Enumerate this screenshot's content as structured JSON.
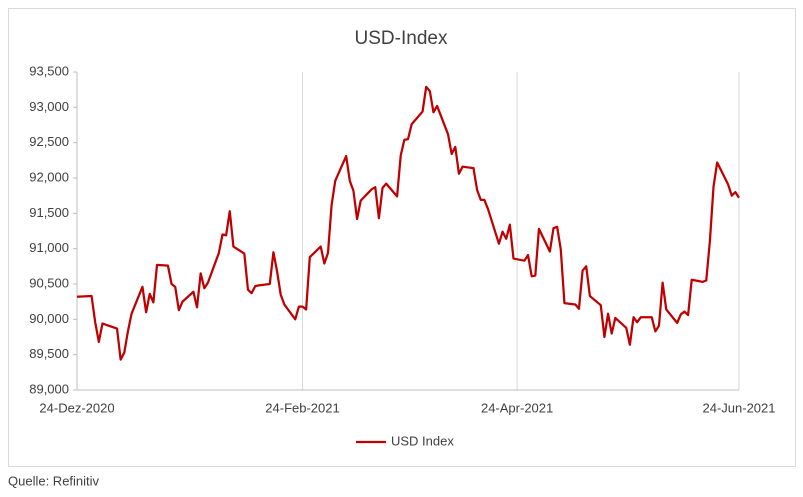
{
  "chart_data": {
    "type": "line",
    "title": "USD-Index",
    "source": "Quelle: Refinitiv",
    "x": [
      "2020-12-24",
      "2020-12-28",
      "2020-12-29",
      "2020-12-30",
      "2020-12-31",
      "2021-01-04",
      "2021-01-05",
      "2021-01-06",
      "2021-01-07",
      "2021-01-08",
      "2021-01-11",
      "2021-01-12",
      "2021-01-13",
      "2021-01-14",
      "2021-01-15",
      "2021-01-18",
      "2021-01-19",
      "2021-01-20",
      "2021-01-21",
      "2021-01-22",
      "2021-01-25",
      "2021-01-26",
      "2021-01-27",
      "2021-01-28",
      "2021-01-29",
      "2021-02-01",
      "2021-02-02",
      "2021-02-03",
      "2021-02-04",
      "2021-02-05",
      "2021-02-08",
      "2021-02-09",
      "2021-02-10",
      "2021-02-11",
      "2021-02-12",
      "2021-02-15",
      "2021-02-16",
      "2021-02-17",
      "2021-02-18",
      "2021-02-19",
      "2021-02-22",
      "2021-02-23",
      "2021-02-24",
      "2021-02-25",
      "2021-02-26",
      "2021-03-01",
      "2021-03-02",
      "2021-03-03",
      "2021-03-04",
      "2021-03-05",
      "2021-03-08",
      "2021-03-09",
      "2021-03-10",
      "2021-03-11",
      "2021-03-12",
      "2021-03-15",
      "2021-03-16",
      "2021-03-17",
      "2021-03-18",
      "2021-03-19",
      "2021-03-22",
      "2021-03-23",
      "2021-03-24",
      "2021-03-25",
      "2021-03-26",
      "2021-03-29",
      "2021-03-30",
      "2021-03-31",
      "2021-04-01",
      "2021-04-02",
      "2021-04-05",
      "2021-04-06",
      "2021-04-07",
      "2021-04-08",
      "2021-04-09",
      "2021-04-12",
      "2021-04-13",
      "2021-04-14",
      "2021-04-15",
      "2021-04-16",
      "2021-04-19",
      "2021-04-20",
      "2021-04-21",
      "2021-04-22",
      "2021-04-23",
      "2021-04-26",
      "2021-04-27",
      "2021-04-28",
      "2021-04-29",
      "2021-04-30",
      "2021-05-03",
      "2021-05-04",
      "2021-05-05",
      "2021-05-06",
      "2021-05-07",
      "2021-05-10",
      "2021-05-11",
      "2021-05-12",
      "2021-05-13",
      "2021-05-14",
      "2021-05-17",
      "2021-05-18",
      "2021-05-19",
      "2021-05-20",
      "2021-05-21",
      "2021-05-24",
      "2021-05-25",
      "2021-05-26",
      "2021-05-27",
      "2021-05-28",
      "2021-05-31",
      "2021-06-01",
      "2021-06-02",
      "2021-06-03",
      "2021-06-04",
      "2021-06-07",
      "2021-06-08",
      "2021-06-09",
      "2021-06-10",
      "2021-06-11",
      "2021-06-14",
      "2021-06-15",
      "2021-06-16",
      "2021-06-17",
      "2021-06-18",
      "2021-06-21",
      "2021-06-22",
      "2021-06-23",
      "2021-06-24"
    ],
    "series": [
      {
        "name": "USD Index",
        "color": "#c00000",
        "values": [
          90320,
          90330,
          89960,
          89680,
          89940,
          89870,
          89430,
          89530,
          89830,
          90080,
          90460,
          90100,
          90360,
          90240,
          90770,
          90760,
          90500,
          90460,
          90130,
          90250,
          90390,
          90170,
          90650,
          90440,
          90520,
          90940,
          91200,
          91190,
          91530,
          91030,
          90930,
          90420,
          90370,
          90470,
          90480,
          90500,
          90950,
          90680,
          90350,
          90210,
          90000,
          90180,
          90180,
          90140,
          90880,
          91030,
          90790,
          90940,
          91620,
          91960,
          92310,
          91960,
          91820,
          91420,
          91680,
          91840,
          91870,
          91430,
          91860,
          91920,
          91740,
          92320,
          92540,
          92550,
          92760,
          92940,
          93290,
          93230,
          92930,
          93020,
          92620,
          92340,
          92440,
          92060,
          92160,
          92140,
          91830,
          91690,
          91690,
          91560,
          91070,
          91240,
          91140,
          91340,
          90860,
          90830,
          90910,
          90610,
          90620,
          91280,
          90960,
          91290,
          91310,
          90990,
          90230,
          90210,
          90150,
          90690,
          90750,
          90330,
          90200,
          89750,
          90080,
          89800,
          90020,
          89880,
          89640,
          90030,
          89960,
          90030,
          90030,
          89830,
          89910,
          90520,
          90140,
          89950,
          90070,
          90110,
          90060,
          90560,
          90530,
          90550,
          91110,
          91880,
          92220,
          91910,
          91750,
          91800,
          91720
        ]
      }
    ],
    "xlim": [
      "2020-12-24",
      "2021-06-24"
    ],
    "xticks": [
      {
        "value": "2020-12-24",
        "label": "24-Dez-2020"
      },
      {
        "value": "2021-02-24",
        "label": "24-Feb-2021"
      },
      {
        "value": "2021-04-24",
        "label": "24-Apr-2021"
      },
      {
        "value": "2021-06-24",
        "label": "24-Jun-2021"
      }
    ],
    "ylim": [
      89000,
      93500
    ],
    "yticks": [
      {
        "value": 89000,
        "label": "89,000"
      },
      {
        "value": 89500,
        "label": "89,500"
      },
      {
        "value": 90000,
        "label": "90,000"
      },
      {
        "value": 90500,
        "label": "90,500"
      },
      {
        "value": 91000,
        "label": "91,000"
      },
      {
        "value": 91500,
        "label": "91,500"
      },
      {
        "value": 92000,
        "label": "92,000"
      },
      {
        "value": 92500,
        "label": "92,500"
      },
      {
        "value": 93000,
        "label": "93,000"
      },
      {
        "value": 93500,
        "label": "93,500"
      }
    ],
    "grid": "x",
    "legend": "bottom"
  }
}
